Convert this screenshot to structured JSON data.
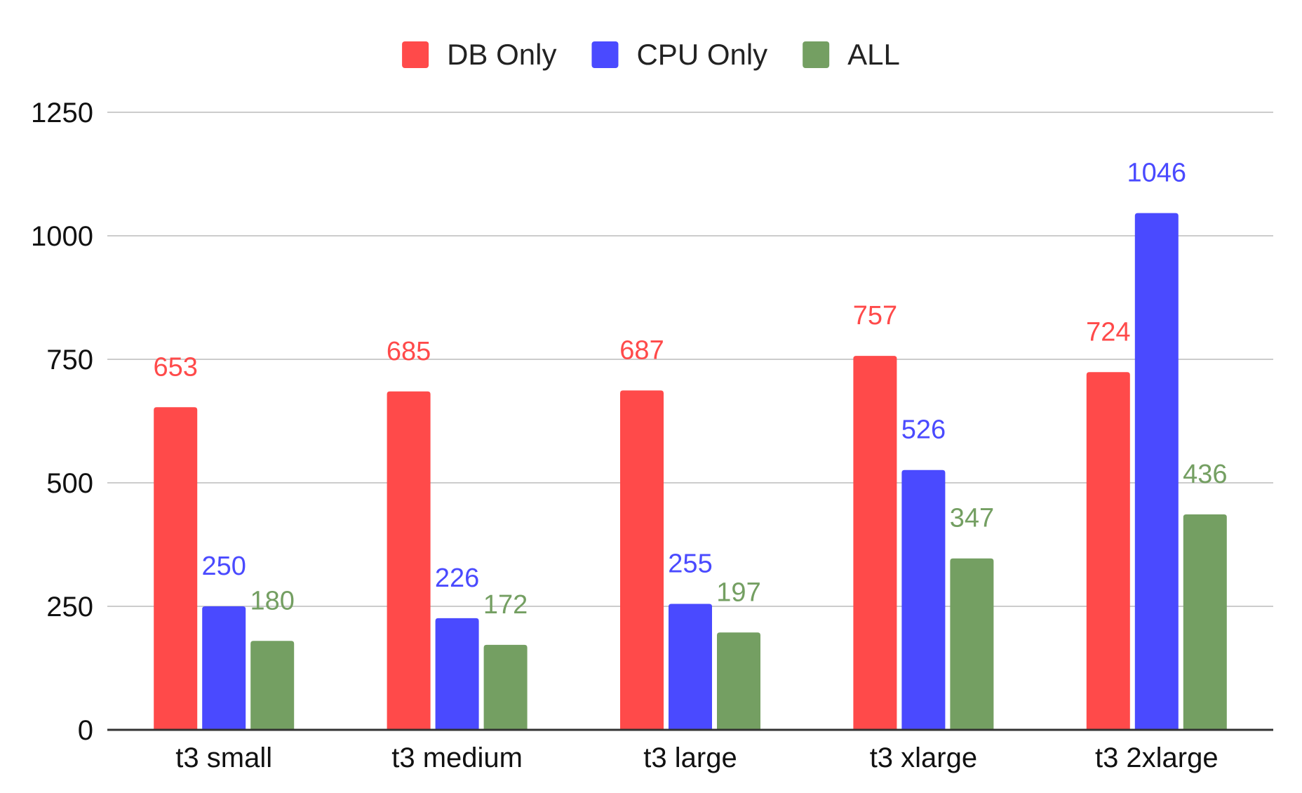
{
  "chart_data": {
    "type": "bar",
    "categories": [
      "t3 small",
      "t3 medium",
      "t3 large",
      "t3 xlarge",
      "t3 2xlarge"
    ],
    "series": [
      {
        "name": "DB Only",
        "color": "#ff4a4a",
        "values": [
          653,
          685,
          687,
          757,
          724
        ]
      },
      {
        "name": "CPU Only",
        "color": "#4a4aff",
        "values": [
          250,
          226,
          255,
          526,
          1046
        ]
      },
      {
        "name": "ALL",
        "color": "#749f62",
        "values": [
          180,
          172,
          197,
          347,
          436
        ]
      }
    ],
    "y_ticks": [
      "0",
      "250",
      "500",
      "750",
      "1000",
      "1250"
    ],
    "ylim": [
      0,
      1250
    ],
    "grid": true,
    "legend_position": "top-center",
    "data_labels": true
  }
}
